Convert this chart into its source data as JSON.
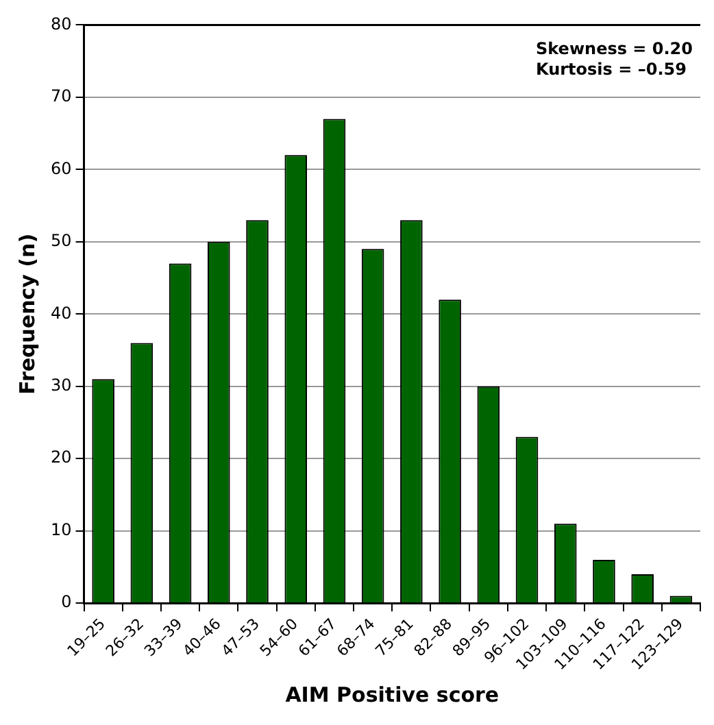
{
  "chart_data": {
    "type": "bar",
    "xlabel": "AIM Positive score",
    "ylabel": "Frequency (n)",
    "categories": [
      "19–25",
      "26–32",
      "33–39",
      "40–46",
      "47–53",
      "54–60",
      "61–67",
      "68–74",
      "75–81",
      "82–88",
      "89–95",
      "96–102",
      "103–109",
      "110–116",
      "117–122",
      "123–129"
    ],
    "values": [
      31,
      36,
      47,
      50,
      53,
      62,
      67,
      49,
      53,
      42,
      30,
      23,
      11,
      6,
      4,
      1
    ],
    "color": "#006400",
    "ylim": [
      0,
      80
    ],
    "yticks": [
      0,
      10,
      20,
      30,
      40,
      50,
      60,
      70,
      80
    ],
    "grid": "y",
    "legend": false,
    "annotations": [
      "Skewness = 0.20",
      "Kurtosis = –0.59"
    ]
  }
}
